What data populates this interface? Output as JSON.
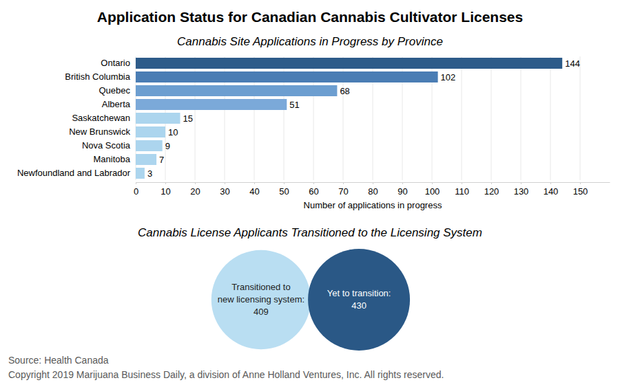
{
  "title": "Application Status for Canadian Cannabis Cultivator Licenses",
  "chart_data": [
    {
      "type": "bar",
      "title": "Cannabis Site Applications in Progress by Province",
      "orientation": "horizontal",
      "categories": [
        "Ontario",
        "British Columbia",
        "Quebec",
        "Alberta",
        "Saskatchewan",
        "New Brunswick",
        "Nova Scotia",
        "Manitoba",
        "Newfoundland and Labrador"
      ],
      "values": [
        144,
        102,
        68,
        51,
        15,
        10,
        9,
        7,
        3
      ],
      "colors": [
        "#2d5b89",
        "#4a7db4",
        "#6c9ed0",
        "#7ba9d9",
        "#acd5ee",
        "#acd5ee",
        "#acd5ee",
        "#acd5ee",
        "#acd5ee"
      ],
      "xlabel": "Number of applications in progress",
      "xlim": [
        0,
        160
      ],
      "xticks": [
        0,
        10,
        20,
        30,
        40,
        50,
        60,
        70,
        80,
        90,
        100,
        110,
        120,
        130,
        140,
        150
      ],
      "grid": true,
      "data_labels": true
    },
    {
      "type": "bubble",
      "title": "Cannabis License Applicants Transitioned to the Licensing System",
      "categories": [
        "Transitioned to new licensing system:",
        "Yet to transition:"
      ],
      "values": [
        409,
        430
      ],
      "colors": [
        "#b9def2",
        "#2a5886"
      ],
      "data_labels": true
    }
  ],
  "source": "Source: Health Canada",
  "copyright": "Copyright 2019 Marijuana Business Daily, a division of Anne Holland Ventures, Inc. All rights reserved."
}
